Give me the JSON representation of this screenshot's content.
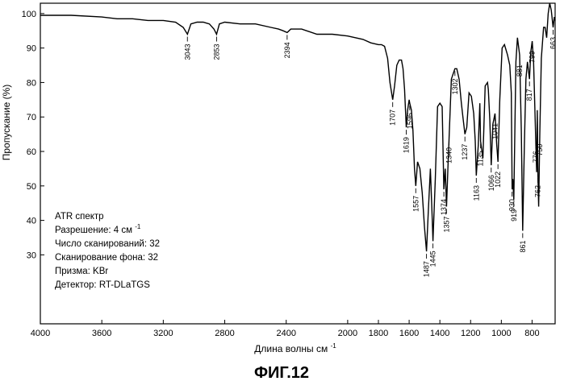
{
  "chart_data": {
    "type": "line",
    "xlabel": "Длина волны см",
    "xlabel_sup": "-1",
    "ylabel": "Пропускание (%)",
    "xlim": [
      4000,
      650
    ],
    "ylim": [
      10,
      103
    ],
    "x_ticks": [
      4000,
      3600,
      3200,
      2800,
      2400,
      2000,
      1800,
      1600,
      1400,
      1200,
      1000,
      800
    ],
    "y_ticks": [
      30,
      40,
      50,
      60,
      70,
      80,
      90,
      100
    ],
    "grid": false,
    "series": [
      {
        "color": "#000000",
        "x": [
          4000,
          3800,
          3600,
          3500,
          3400,
          3300,
          3200,
          3120,
          3070,
          3043,
          3020,
          2980,
          2940,
          2900,
          2870,
          2853,
          2835,
          2800,
          2700,
          2600,
          2500,
          2450,
          2420,
          2394,
          2370,
          2300,
          2200,
          2100,
          2000,
          1900,
          1850,
          1800,
          1780,
          1760,
          1740,
          1725,
          1707,
          1695,
          1680,
          1665,
          1650,
          1640,
          1630,
          1619,
          1610,
          1600,
          1596,
          1585,
          1575,
          1565,
          1557,
          1545,
          1530,
          1515,
          1500,
          1487,
          1475,
          1462,
          1450,
          1445,
          1430,
          1415,
          1400,
          1385,
          1374,
          1365,
          1357,
          1348,
          1340,
          1325,
          1310,
          1302,
          1290,
          1275,
          1260,
          1250,
          1237,
          1225,
          1210,
          1195,
          1180,
          1170,
          1163,
          1150,
          1140,
          1135,
          1120,
          1105,
          1090,
          1085,
          1075,
          1066,
          1055,
          1041,
          1030,
          1022,
          1010,
          995,
          980,
          960,
          945,
          935,
          930,
          925,
          919,
          905,
          895,
          881,
          870,
          861,
          850,
          840,
          830,
          817,
          808,
          799,
          790,
          783,
          776,
          770,
          766,
          762,
          757,
          750,
          740,
          725,
          715,
          705,
          695,
          685,
          675,
          663,
          655,
          650
        ],
        "y": [
          99.5,
          99.5,
          99,
          98.5,
          98.5,
          98,
          98,
          97.5,
          96,
          94,
          97,
          97.5,
          97.5,
          97,
          95.5,
          94,
          97,
          97.5,
          97,
          97,
          96,
          95.5,
          95,
          94.5,
          95.5,
          95.5,
          94,
          94,
          93.5,
          92.5,
          91.5,
          91,
          91,
          90.5,
          87,
          80,
          75,
          79,
          85,
          86.5,
          86.5,
          84,
          78,
          67,
          72,
          75,
          74,
          72,
          66,
          55,
          50,
          57,
          55,
          48,
          38,
          31,
          43,
          55,
          41,
          34,
          52,
          73,
          74,
          73,
          49,
          55,
          44,
          55,
          64,
          81,
          83,
          84,
          84,
          81,
          74,
          70,
          65,
          67,
          77,
          76,
          71,
          63,
          53,
          62,
          74,
          63,
          58,
          79,
          80,
          78,
          69,
          56,
          68,
          71,
          62,
          57,
          75,
          90,
          91,
          88,
          85,
          77,
          49,
          52,
          46,
          86,
          93,
          88,
          66,
          37,
          62,
          81,
          86,
          81,
          89,
          92,
          86,
          74,
          63,
          54,
          72,
          53,
          44,
          65,
          87,
          96,
          96,
          93,
          100,
          103,
          101,
          96,
          99,
          98
        ]
      }
    ],
    "peak_labels": [
      {
        "x": 3043,
        "label": "3043"
      },
      {
        "x": 2853,
        "label": "2853"
      },
      {
        "x": 2394,
        "label": "2394"
      },
      {
        "x": 1707,
        "label": "1707"
      },
      {
        "x": 1619,
        "label": "1619"
      },
      {
        "x": 1596,
        "label": "1596"
      },
      {
        "x": 1557,
        "label": "1557"
      },
      {
        "x": 1487,
        "label": "1487"
      },
      {
        "x": 1445,
        "label": "1445"
      },
      {
        "x": 1374,
        "label": "1374"
      },
      {
        "x": 1357,
        "label": "1357"
      },
      {
        "x": 1340,
        "label": "1340"
      },
      {
        "x": 1302,
        "label": "1302"
      },
      {
        "x": 1237,
        "label": "1237"
      },
      {
        "x": 1163,
        "label": "1163"
      },
      {
        "x": 1135,
        "label": "1135"
      },
      {
        "x": 1066,
        "label": "1066"
      },
      {
        "x": 1041,
        "label": "1041"
      },
      {
        "x": 1022,
        "label": "1022"
      },
      {
        "x": 930,
        "label": "930"
      },
      {
        "x": 919,
        "label": "919"
      },
      {
        "x": 881,
        "label": "881"
      },
      {
        "x": 861,
        "label": "861"
      },
      {
        "x": 817,
        "label": "817"
      },
      {
        "x": 799,
        "label": "799"
      },
      {
        "x": 776,
        "label": "776"
      },
      {
        "x": 762,
        "label": "762"
      },
      {
        "x": 750,
        "label": "750"
      },
      {
        "x": 663,
        "label": "663"
      }
    ],
    "info_lines": [
      "ATR спектр",
      "Разрешение: 4 см",
      "Число сканирований: 32",
      "Сканирование фона: 32",
      "Призма: KBr",
      "Детектор: RT-DLaTGS"
    ],
    "resolution_sup": "-1",
    "caption": "ФИГ.12"
  }
}
